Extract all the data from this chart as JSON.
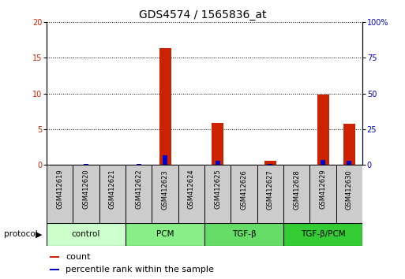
{
  "title": "GDS4574 / 1565836_at",
  "samples": [
    "GSM412619",
    "GSM412620",
    "GSM412621",
    "GSM412622",
    "GSM412623",
    "GSM412624",
    "GSM412625",
    "GSM412626",
    "GSM412627",
    "GSM412628",
    "GSM412629",
    "GSM412630"
  ],
  "count_values": [
    0,
    0,
    0,
    0,
    16.4,
    0,
    5.9,
    0,
    0.5,
    0,
    9.8,
    5.8
  ],
  "percentile_values": [
    0,
    0.4,
    0,
    0.7,
    6.3,
    0,
    2.9,
    0.1,
    0.4,
    0.1,
    3.1,
    2.6
  ],
  "group_defs": [
    {
      "label": "control",
      "start": 0,
      "end": 3,
      "color": "#ccffcc"
    },
    {
      "label": "PCM",
      "start": 3,
      "end": 6,
      "color": "#88ee88"
    },
    {
      "label": "TGF-β",
      "start": 6,
      "end": 9,
      "color": "#66dd66"
    },
    {
      "label": "TGF-β/PCM",
      "start": 9,
      "end": 12,
      "color": "#33cc33"
    }
  ],
  "ylim_left": [
    0,
    20
  ],
  "ylim_right": [
    0,
    100
  ],
  "yticks_left": [
    0,
    5,
    10,
    15,
    20
  ],
  "yticks_right": [
    0,
    25,
    50,
    75,
    100
  ],
  "yticklabels_right": [
    "0",
    "25",
    "50",
    "75",
    "100%"
  ],
  "bar_color_red": "#cc2200",
  "bar_color_blue": "#0000cc",
  "title_fontsize": 10,
  "tick_fontsize": 7,
  "label_fontsize": 6,
  "legend_fontsize": 8,
  "protocol_label": "protocol",
  "background_color": "#ffffff",
  "sample_box_color": "#cccccc"
}
